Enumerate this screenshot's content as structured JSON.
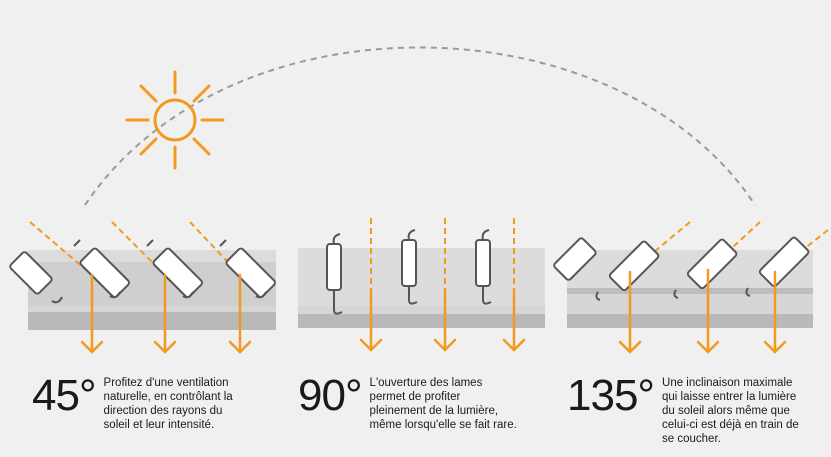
{
  "colors": {
    "accent": "#f29a1f",
    "background": "#f0f0f0",
    "band": "#cbcbcb",
    "band_dark": "#b9b9b9",
    "slat": "#555555",
    "arc": "#9a9a9a"
  },
  "icons": [
    "sun-icon"
  ],
  "sections": [
    {
      "angle": "45°",
      "description": [
        "Profitez d'une ventilation",
        "naturelle, en contrôlant la",
        "direction des rayons du",
        "soleil et leur intensité."
      ]
    },
    {
      "angle": "90°",
      "description": [
        "L'ouverture des lames",
        "permet de profiter",
        "pleinement de la lumière,",
        "même lorsqu'elle se fait rare."
      ]
    },
    {
      "angle": "135°",
      "description": [
        "Une inclinaison maximale",
        "qui laisse entrer la lumière",
        "du soleil alors même que",
        "celui-ci est déjà en train de",
        "se coucher."
      ]
    }
  ]
}
